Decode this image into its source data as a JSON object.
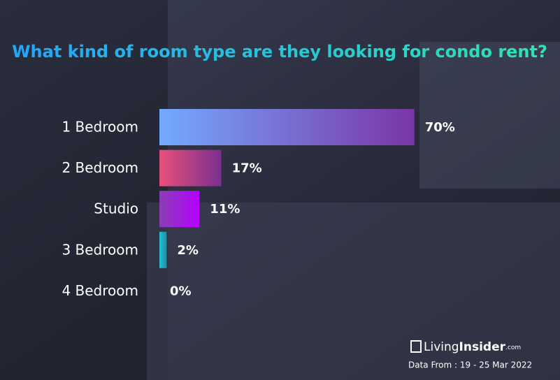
{
  "chart_data": {
    "type": "hbar",
    "title": "What kind of room type are they looking for condo rent?",
    "categories": [
      "1 Bedroom",
      "2 Bedroom",
      "Studio",
      "3 Bedroom",
      "4 Bedroom"
    ],
    "values": [
      70,
      17,
      11,
      2,
      0
    ],
    "value_labels": [
      "70%",
      "17%",
      "11%",
      "2%",
      "0%"
    ],
    "colors": [
      [
        "#74aaff",
        "#7b35a5"
      ],
      [
        "#e8507a",
        "#7a2f8f"
      ],
      [
        "#8a3fb5",
        "#b600ff"
      ],
      [
        "#22c3d3",
        "#1a8fa8"
      ],
      [
        "#888888",
        "#888888"
      ]
    ]
  },
  "brand": {
    "name": "Living",
    "name_bold": "Insider",
    "suffix": ".com"
  },
  "source": "Data From : 19 - 25  Mar 2022"
}
